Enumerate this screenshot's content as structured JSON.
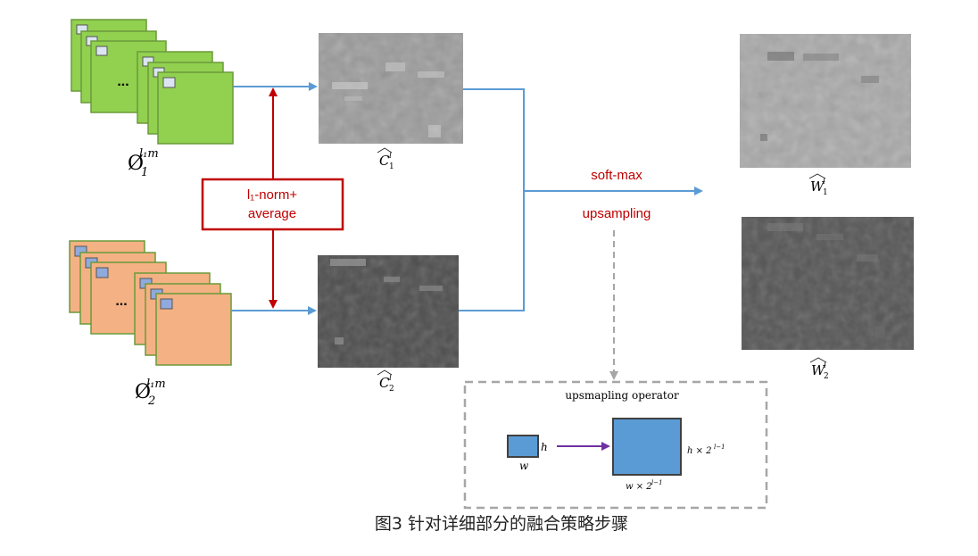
{
  "fusion_box": {
    "line1": "l₁-norm+",
    "line2": "average",
    "color": "#c00000"
  },
  "softmax_label": "soft-max",
  "upsampling_label": "upsampling",
  "input1_label": {
    "base": "Ø",
    "sub": "1",
    "sup": "l₁m"
  },
  "input2_label": {
    "base": "Ø",
    "sub": "2",
    "sup": "l₁m"
  },
  "c1_label": {
    "base": "C",
    "sub": "1",
    "sup": "l"
  },
  "c2_label": {
    "base": "C",
    "sub": "2",
    "sup": "l"
  },
  "w1_label": {
    "base": "W",
    "sub": "1",
    "sup": "l"
  },
  "w2_label": {
    "base": "W",
    "sub": "2",
    "sup": "l"
  },
  "ellipsis": "...",
  "operator": {
    "title": "upsmapling operator",
    "h_label": "h",
    "w_label": "w",
    "out_h_label": "h × 2",
    "out_w_label": "w × 2",
    "exponent": "l−1"
  },
  "caption": "图3 针对详细部分的融合策略步骤",
  "colors": {
    "green": "#92d050",
    "orange": "#f4b183",
    "blue_arrow": "#5b9bd5",
    "red": "#c00000",
    "purple": "#7030a0",
    "dash_gray": "#a6a6a6"
  }
}
